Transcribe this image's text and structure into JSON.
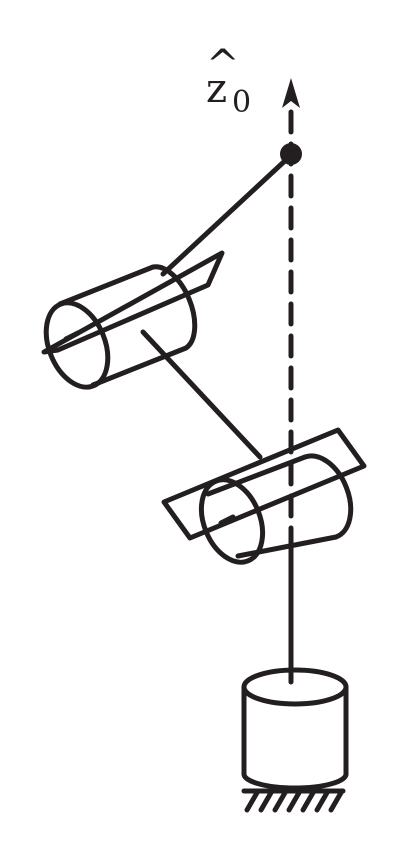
{
  "axis_label": {
    "hat": "^",
    "main": "z",
    "subscript": "0"
  }
}
